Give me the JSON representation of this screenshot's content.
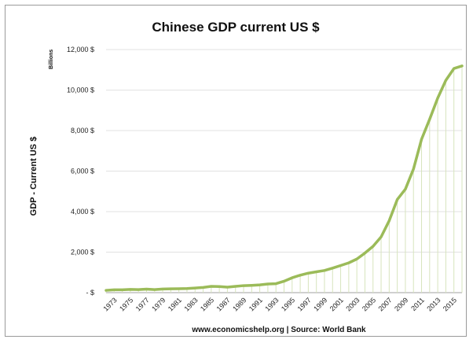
{
  "chart_data": {
    "type": "area",
    "title": "Chinese GDP current US $",
    "ylabel": "GDP - Current US $",
    "yunit": "Billions",
    "source": "www.economicshelp.org | Source: World Bank",
    "ylim": [
      0,
      12000
    ],
    "yticks": [
      0,
      2000,
      4000,
      6000,
      8000,
      10000,
      12000
    ],
    "ytick_labels": [
      "-   $",
      "2,000 $",
      "4,000 $",
      "6,000 $",
      "8,000 $",
      "10,000 $",
      "12,000 $"
    ],
    "xtick_labels": [
      "1973",
      "1975",
      "1977",
      "1979",
      "1981",
      "1983",
      "1985",
      "1987",
      "1989",
      "1991",
      "1993",
      "1995",
      "1997",
      "1999",
      "2001",
      "2003",
      "2005",
      "2007",
      "2009",
      "2011",
      "2013",
      "2015"
    ],
    "grid": true,
    "line_color": "#9bbb59",
    "fill_color": "#d7e4bd",
    "x": [
      1972,
      1973,
      1974,
      1975,
      1976,
      1977,
      1978,
      1979,
      1980,
      1981,
      1982,
      1983,
      1984,
      1985,
      1986,
      1987,
      1988,
      1989,
      1990,
      1991,
      1992,
      1993,
      1994,
      1995,
      1996,
      1997,
      1998,
      1999,
      2000,
      2001,
      2002,
      2003,
      2004,
      2005,
      2006,
      2007,
      2008,
      2009,
      2010,
      2011,
      2012,
      2013,
      2014,
      2015,
      2016
    ],
    "values": [
      114,
      139,
      142,
      161,
      151,
      173,
      149,
      178,
      191,
      196,
      204,
      228,
      259,
      309,
      300,
      273,
      312,
      347,
      361,
      383,
      427,
      444,
      564,
      734,
      863,
      962,
      1029,
      1094,
      1211,
      1339,
      1471,
      1660,
      1955,
      2286,
      2752,
      3552,
      4598,
      5110,
      6101,
      7573,
      8561,
      9607,
      10482,
      11065,
      11191
    ]
  }
}
